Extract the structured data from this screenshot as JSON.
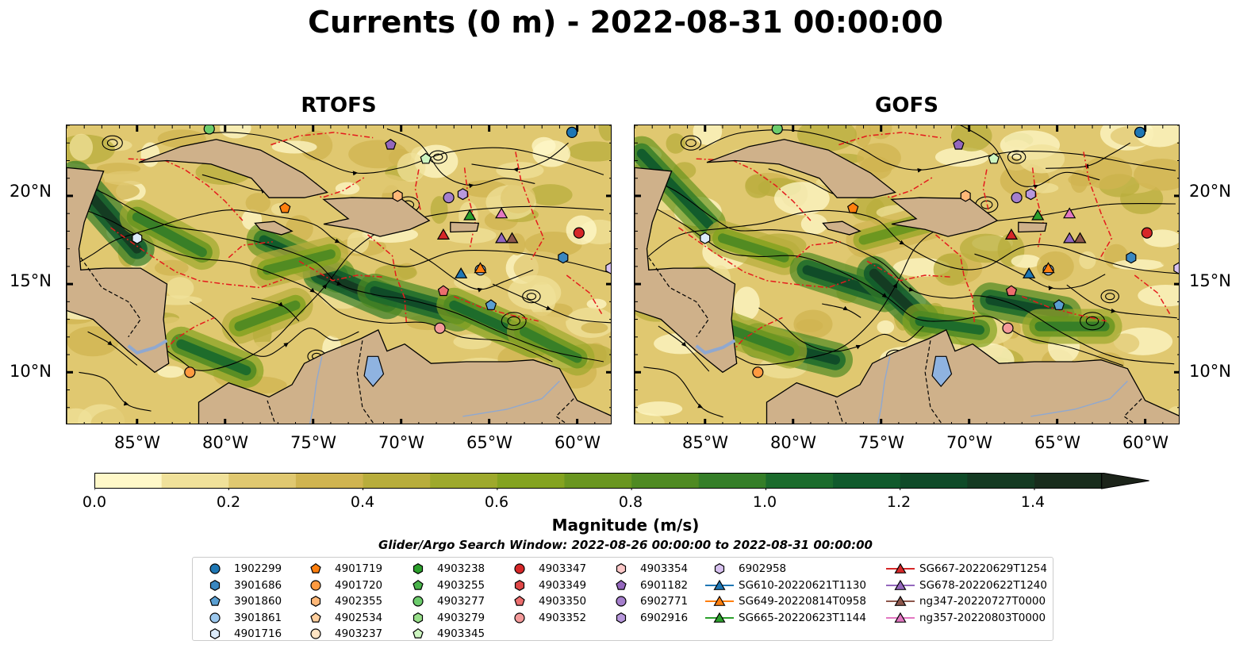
{
  "title": "Currents (0 m) - 2022-08-31 00:00:00",
  "panels": [
    {
      "title": "RTOFS"
    },
    {
      "title": "GOFS"
    }
  ],
  "axes": {
    "x_ticks": [
      "85°W",
      "80°W",
      "75°W",
      "70°W",
      "65°W",
      "60°W"
    ],
    "y_ticks": [
      "20°N",
      "15°N",
      "10°N"
    ],
    "lon_range": [
      -89,
      -58
    ],
    "lat_range": [
      7,
      24
    ]
  },
  "colorbar": {
    "label": "Magnitude (m/s)",
    "ticks": [
      "0.0",
      "0.2",
      "0.4",
      "0.6",
      "0.8",
      "1.0",
      "1.2",
      "1.4"
    ],
    "colors": [
      "#fff8c8",
      "#f0e19a",
      "#e0c870",
      "#d0b450",
      "#b8ad3c",
      "#9ea92c",
      "#84a320",
      "#6a9620",
      "#4f8a22",
      "#357e28",
      "#1b6b2c",
      "#105a2c",
      "#0f4a28",
      "#143a22",
      "#182c1c",
      "#1c241a"
    ],
    "step": 0.1,
    "extend": "max"
  },
  "search_window": "Glider/Argo Search Window: 2022-08-26 00:00:00 to 2022-08-31 00:00:00",
  "legend": {
    "columns": [
      [
        {
          "label": "1902299",
          "marker": "circle",
          "color": "#1f77b4"
        },
        {
          "label": "3901686",
          "marker": "hexagon",
          "color": "#3a87c0"
        },
        {
          "label": "3901860",
          "marker": "pentagon",
          "color": "#5a9fd2"
        },
        {
          "label": "3901861",
          "marker": "circle",
          "color": "#9cc8ee"
        },
        {
          "label": "4901716",
          "marker": "hexagon",
          "color": "#dcebfa"
        }
      ],
      [
        {
          "label": "4901719",
          "marker": "pentagon",
          "color": "#ff7f0e"
        },
        {
          "label": "4901720",
          "marker": "circle",
          "color": "#ff9a40"
        },
        {
          "label": "4902355",
          "marker": "hexagon",
          "color": "#ffb878"
        },
        {
          "label": "4902534",
          "marker": "pentagon",
          "color": "#ffcf9e"
        },
        {
          "label": "4903237",
          "marker": "circle",
          "color": "#ffe4c4"
        }
      ],
      [
        {
          "label": "4903238",
          "marker": "hexagon",
          "color": "#2ca02c"
        },
        {
          "label": "4903255",
          "marker": "pentagon",
          "color": "#49b34a"
        },
        {
          "label": "4903277",
          "marker": "circle",
          "color": "#6ccc6c"
        },
        {
          "label": "4903279",
          "marker": "hexagon",
          "color": "#98df8a"
        },
        {
          "label": "4903345",
          "marker": "pentagon",
          "color": "#cdf5c0"
        }
      ],
      [
        {
          "label": "4903347",
          "marker": "circle",
          "color": "#d62728"
        },
        {
          "label": "4903349",
          "marker": "hexagon",
          "color": "#e04848"
        },
        {
          "label": "4903350",
          "marker": "pentagon",
          "color": "#ec6e6e"
        },
        {
          "label": "4903352",
          "marker": "circle",
          "color": "#f49a9a"
        }
      ],
      [
        {
          "label": "4903354",
          "marker": "hexagon",
          "color": "#fcc8c8"
        },
        {
          "label": "6901182",
          "marker": "pentagon",
          "color": "#9467bd"
        },
        {
          "label": "6902771",
          "marker": "circle",
          "color": "#a57fcc"
        },
        {
          "label": "6902916",
          "marker": "hexagon",
          "color": "#b898dc"
        }
      ],
      [
        {
          "label": "6902958",
          "marker": "hexagon",
          "color": "#d8c2f0"
        },
        {
          "label": "SG610-20220621T1130",
          "marker": "triangle",
          "color": "#1f77b4"
        },
        {
          "label": "SG649-20220814T0958",
          "marker": "triangle",
          "color": "#ff7f0e"
        },
        {
          "label": "SG665-20220623T1144",
          "marker": "triangle",
          "color": "#2ca02c"
        }
      ],
      [
        {
          "label": "SG667-20220629T1254",
          "marker": "triangle",
          "color": "#d62728"
        },
        {
          "label": "SG678-20220622T1240",
          "marker": "triangle",
          "color": "#9467bd"
        },
        {
          "label": "ng347-20220727T0000",
          "marker": "triangle",
          "color": "#8c564b"
        },
        {
          "label": "ng357-20220803T0000",
          "marker": "triangle",
          "color": "#e377c2"
        }
      ]
    ]
  },
  "markers": [
    {
      "id": "1902299",
      "marker": "circle",
      "color": "#1f77b4",
      "lon": -60.3,
      "lat": 23.6
    },
    {
      "id": "3901686",
      "marker": "hexagon",
      "color": "#3a87c0",
      "lon": -60.8,
      "lat": 16.5
    },
    {
      "id": "3901860",
      "marker": "pentagon",
      "color": "#5a9fd2",
      "lon": -64.9,
      "lat": 13.8
    },
    {
      "id": "3901861",
      "marker": "circle",
      "color": "#9cc8ee",
      "lon": -65.5,
      "lat": 15.8
    },
    {
      "id": "4901716",
      "marker": "hexagon",
      "color": "#dcebfa",
      "lon": -85.0,
      "lat": 17.6
    },
    {
      "id": "4901719",
      "marker": "pentagon",
      "color": "#ff7f0e",
      "lon": -76.6,
      "lat": 19.3
    },
    {
      "id": "4901720",
      "marker": "circle",
      "color": "#ff9a40",
      "lon": -82.0,
      "lat": 10.0
    },
    {
      "id": "4902355",
      "marker": "hexagon",
      "color": "#ffb878",
      "lon": -70.2,
      "lat": 20.0
    },
    {
      "id": "4903277",
      "marker": "circle",
      "color": "#6ccc6c",
      "lon": -80.9,
      "lat": 23.8
    },
    {
      "id": "4903345",
      "marker": "pentagon",
      "color": "#cdf5c0",
      "lon": -68.6,
      "lat": 22.1
    },
    {
      "id": "4903347",
      "marker": "circle",
      "color": "#d62728",
      "lon": -59.9,
      "lat": 17.9
    },
    {
      "id": "4903350",
      "marker": "pentagon",
      "color": "#ec6e6e",
      "lon": -67.6,
      "lat": 14.6
    },
    {
      "id": "4903352",
      "marker": "circle",
      "color": "#f49a9a",
      "lon": -67.8,
      "lat": 12.5
    },
    {
      "id": "6901182",
      "marker": "pentagon",
      "color": "#9467bd",
      "lon": -70.6,
      "lat": 22.9
    },
    {
      "id": "6902771",
      "marker": "circle",
      "color": "#a57fcc",
      "lon": -67.3,
      "lat": 19.9
    },
    {
      "id": "6902916",
      "marker": "hexagon",
      "color": "#b898dc",
      "lon": -66.5,
      "lat": 20.1
    },
    {
      "id": "6902958",
      "marker": "hexagon",
      "color": "#d8c2f0",
      "lon": -58.1,
      "lat": 15.9
    },
    {
      "id": "SG610-20220621T1130",
      "marker": "triangle",
      "color": "#1f77b4",
      "lon": -66.6,
      "lat": 15.6
    },
    {
      "id": "SG649-20220814T0958",
      "marker": "triangle",
      "color": "#ff7f0e",
      "lon": -65.5,
      "lat": 15.9
    },
    {
      "id": "SG665-20220623T1144",
      "marker": "triangle",
      "color": "#2ca02c",
      "lon": -66.1,
      "lat": 18.9
    },
    {
      "id": "SG667-20220629T1254",
      "marker": "triangle",
      "color": "#d62728",
      "lon": -67.6,
      "lat": 17.8
    },
    {
      "id": "SG678-20220622T1240",
      "marker": "triangle",
      "color": "#9467bd",
      "lon": -64.3,
      "lat": 17.6
    },
    {
      "id": "ng347-20220727T0000",
      "marker": "triangle",
      "color": "#8c564b",
      "lon": -63.7,
      "lat": 17.6
    },
    {
      "id": "ng357-20220803T0000",
      "marker": "triangle",
      "color": "#e377c2",
      "lon": -64.3,
      "lat": 19.0
    }
  ]
}
